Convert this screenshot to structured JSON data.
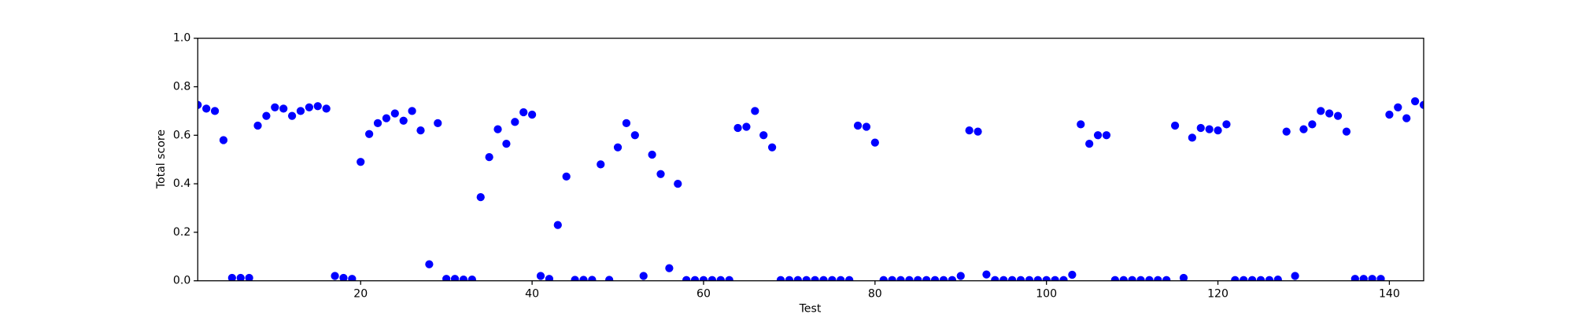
{
  "chart_data": {
    "type": "scatter",
    "xlabel": "Test",
    "ylabel": "Total score",
    "color": "#0000ff",
    "x": [
      1,
      2,
      3,
      4,
      5,
      6,
      7,
      8,
      9,
      10,
      11,
      12,
      13,
      14,
      15,
      16,
      17,
      18,
      19,
      20,
      21,
      22,
      23,
      24,
      25,
      26,
      27,
      28,
      29,
      30,
      31,
      32,
      33,
      34,
      35,
      36,
      37,
      38,
      39,
      40,
      41,
      42,
      43,
      44,
      45,
      46,
      47,
      48,
      49,
      50,
      51,
      52,
      53,
      54,
      55,
      56,
      57,
      58,
      59,
      60,
      61,
      62,
      63,
      64,
      65,
      66,
      67,
      68,
      69,
      70,
      71,
      72,
      73,
      74,
      75,
      76,
      77,
      78,
      79,
      80,
      81,
      82,
      83,
      84,
      85,
      86,
      87,
      88,
      89,
      90,
      91,
      92,
      93,
      94,
      95,
      96,
      97,
      98,
      99,
      100,
      101,
      102,
      103,
      104,
      105,
      106,
      107,
      108,
      109,
      110,
      111,
      112,
      113,
      114,
      115,
      116,
      117,
      118,
      119,
      120,
      121,
      122,
      123,
      124,
      125,
      126,
      127,
      128,
      129,
      130,
      131,
      132,
      133,
      134,
      135,
      136,
      137,
      138,
      139,
      140,
      141,
      142,
      143,
      144
    ],
    "values": [
      0.725,
      0.71,
      0.7,
      0.58,
      0.012,
      0.012,
      0.012,
      0.64,
      0.68,
      0.715,
      0.71,
      0.68,
      0.7,
      0.715,
      0.72,
      0.71,
      0.02,
      0.012,
      0.008,
      0.49,
      0.605,
      0.65,
      0.67,
      0.69,
      0.66,
      0.7,
      0.62,
      0.068,
      0.65,
      0.008,
      0.008,
      0.005,
      0.005,
      0.345,
      0.51,
      0.625,
      0.565,
      0.655,
      0.695,
      0.685,
      0.02,
      0.008,
      0.23,
      0.43,
      0.004,
      0.004,
      0.004,
      0.48,
      0.004,
      0.55,
      0.65,
      0.6,
      0.02,
      0.52,
      0.44,
      0.052,
      0.4,
      0.003,
      0.003,
      0.003,
      0.003,
      0.003,
      0.003,
      0.63,
      0.635,
      0.7,
      0.6,
      0.55,
      0.003,
      0.003,
      0.003,
      0.003,
      0.003,
      0.003,
      0.003,
      0.003,
      0.003,
      0.64,
      0.635,
      0.57,
      0.003,
      0.003,
      0.003,
      0.003,
      0.003,
      0.003,
      0.003,
      0.003,
      0.003,
      0.02,
      0.62,
      0.615,
      0.026,
      0.003,
      0.003,
      0.003,
      0.003,
      0.003,
      0.003,
      0.003,
      0.003,
      0.003,
      0.025,
      0.645,
      0.565,
      0.6,
      0.6,
      0.003,
      0.003,
      0.003,
      0.003,
      0.003,
      0.003,
      0.003,
      0.64,
      0.012,
      0.59,
      0.63,
      0.625,
      0.62,
      0.645,
      0.003,
      0.003,
      0.003,
      0.003,
      0.003,
      0.005,
      0.615,
      0.02,
      0.625,
      0.645,
      0.7,
      0.69,
      0.68,
      0.615,
      0.008,
      0.008,
      0.008,
      0.008,
      0.685,
      0.715,
      0.67,
      0.74,
      0.725
    ],
    "xlim": [
      1,
      144
    ],
    "xticks": [
      20,
      40,
      60,
      80,
      100,
      120,
      140
    ],
    "ylim": [
      0,
      1
    ],
    "yticks": [
      {
        "value": 0,
        "label": "0.0"
      },
      0.2,
      0.4,
      0.6,
      0.8,
      {
        "value": 1,
        "label": "1.0"
      }
    ]
  }
}
